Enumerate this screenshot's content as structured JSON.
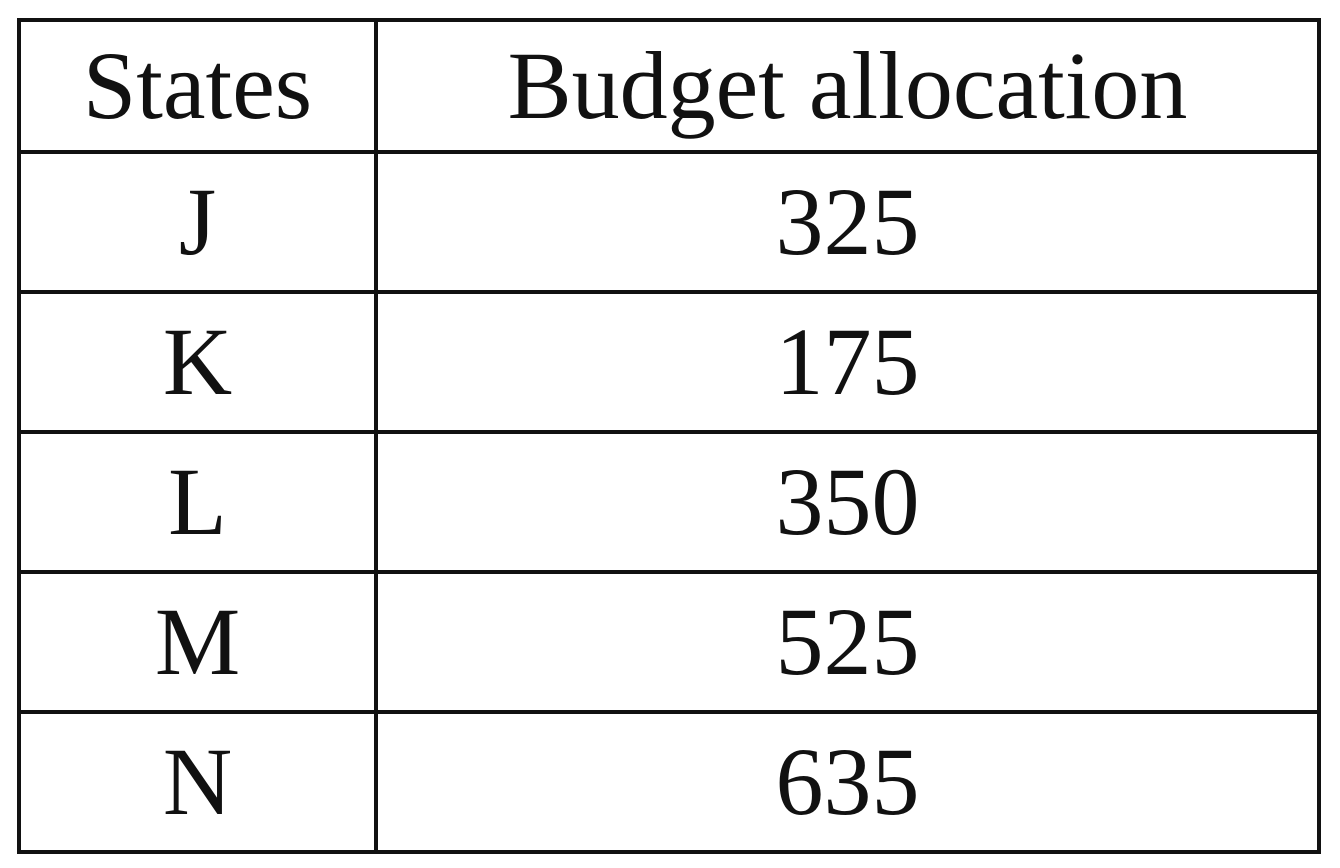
{
  "chart_data": {
    "type": "table",
    "columns": [
      "States",
      "Budget allocation"
    ],
    "rows": [
      {
        "state": "J",
        "budget": 325
      },
      {
        "state": "K",
        "budget": 175
      },
      {
        "state": "L",
        "budget": 350
      },
      {
        "state": "M",
        "budget": 525
      },
      {
        "state": "N",
        "budget": 635
      }
    ]
  }
}
